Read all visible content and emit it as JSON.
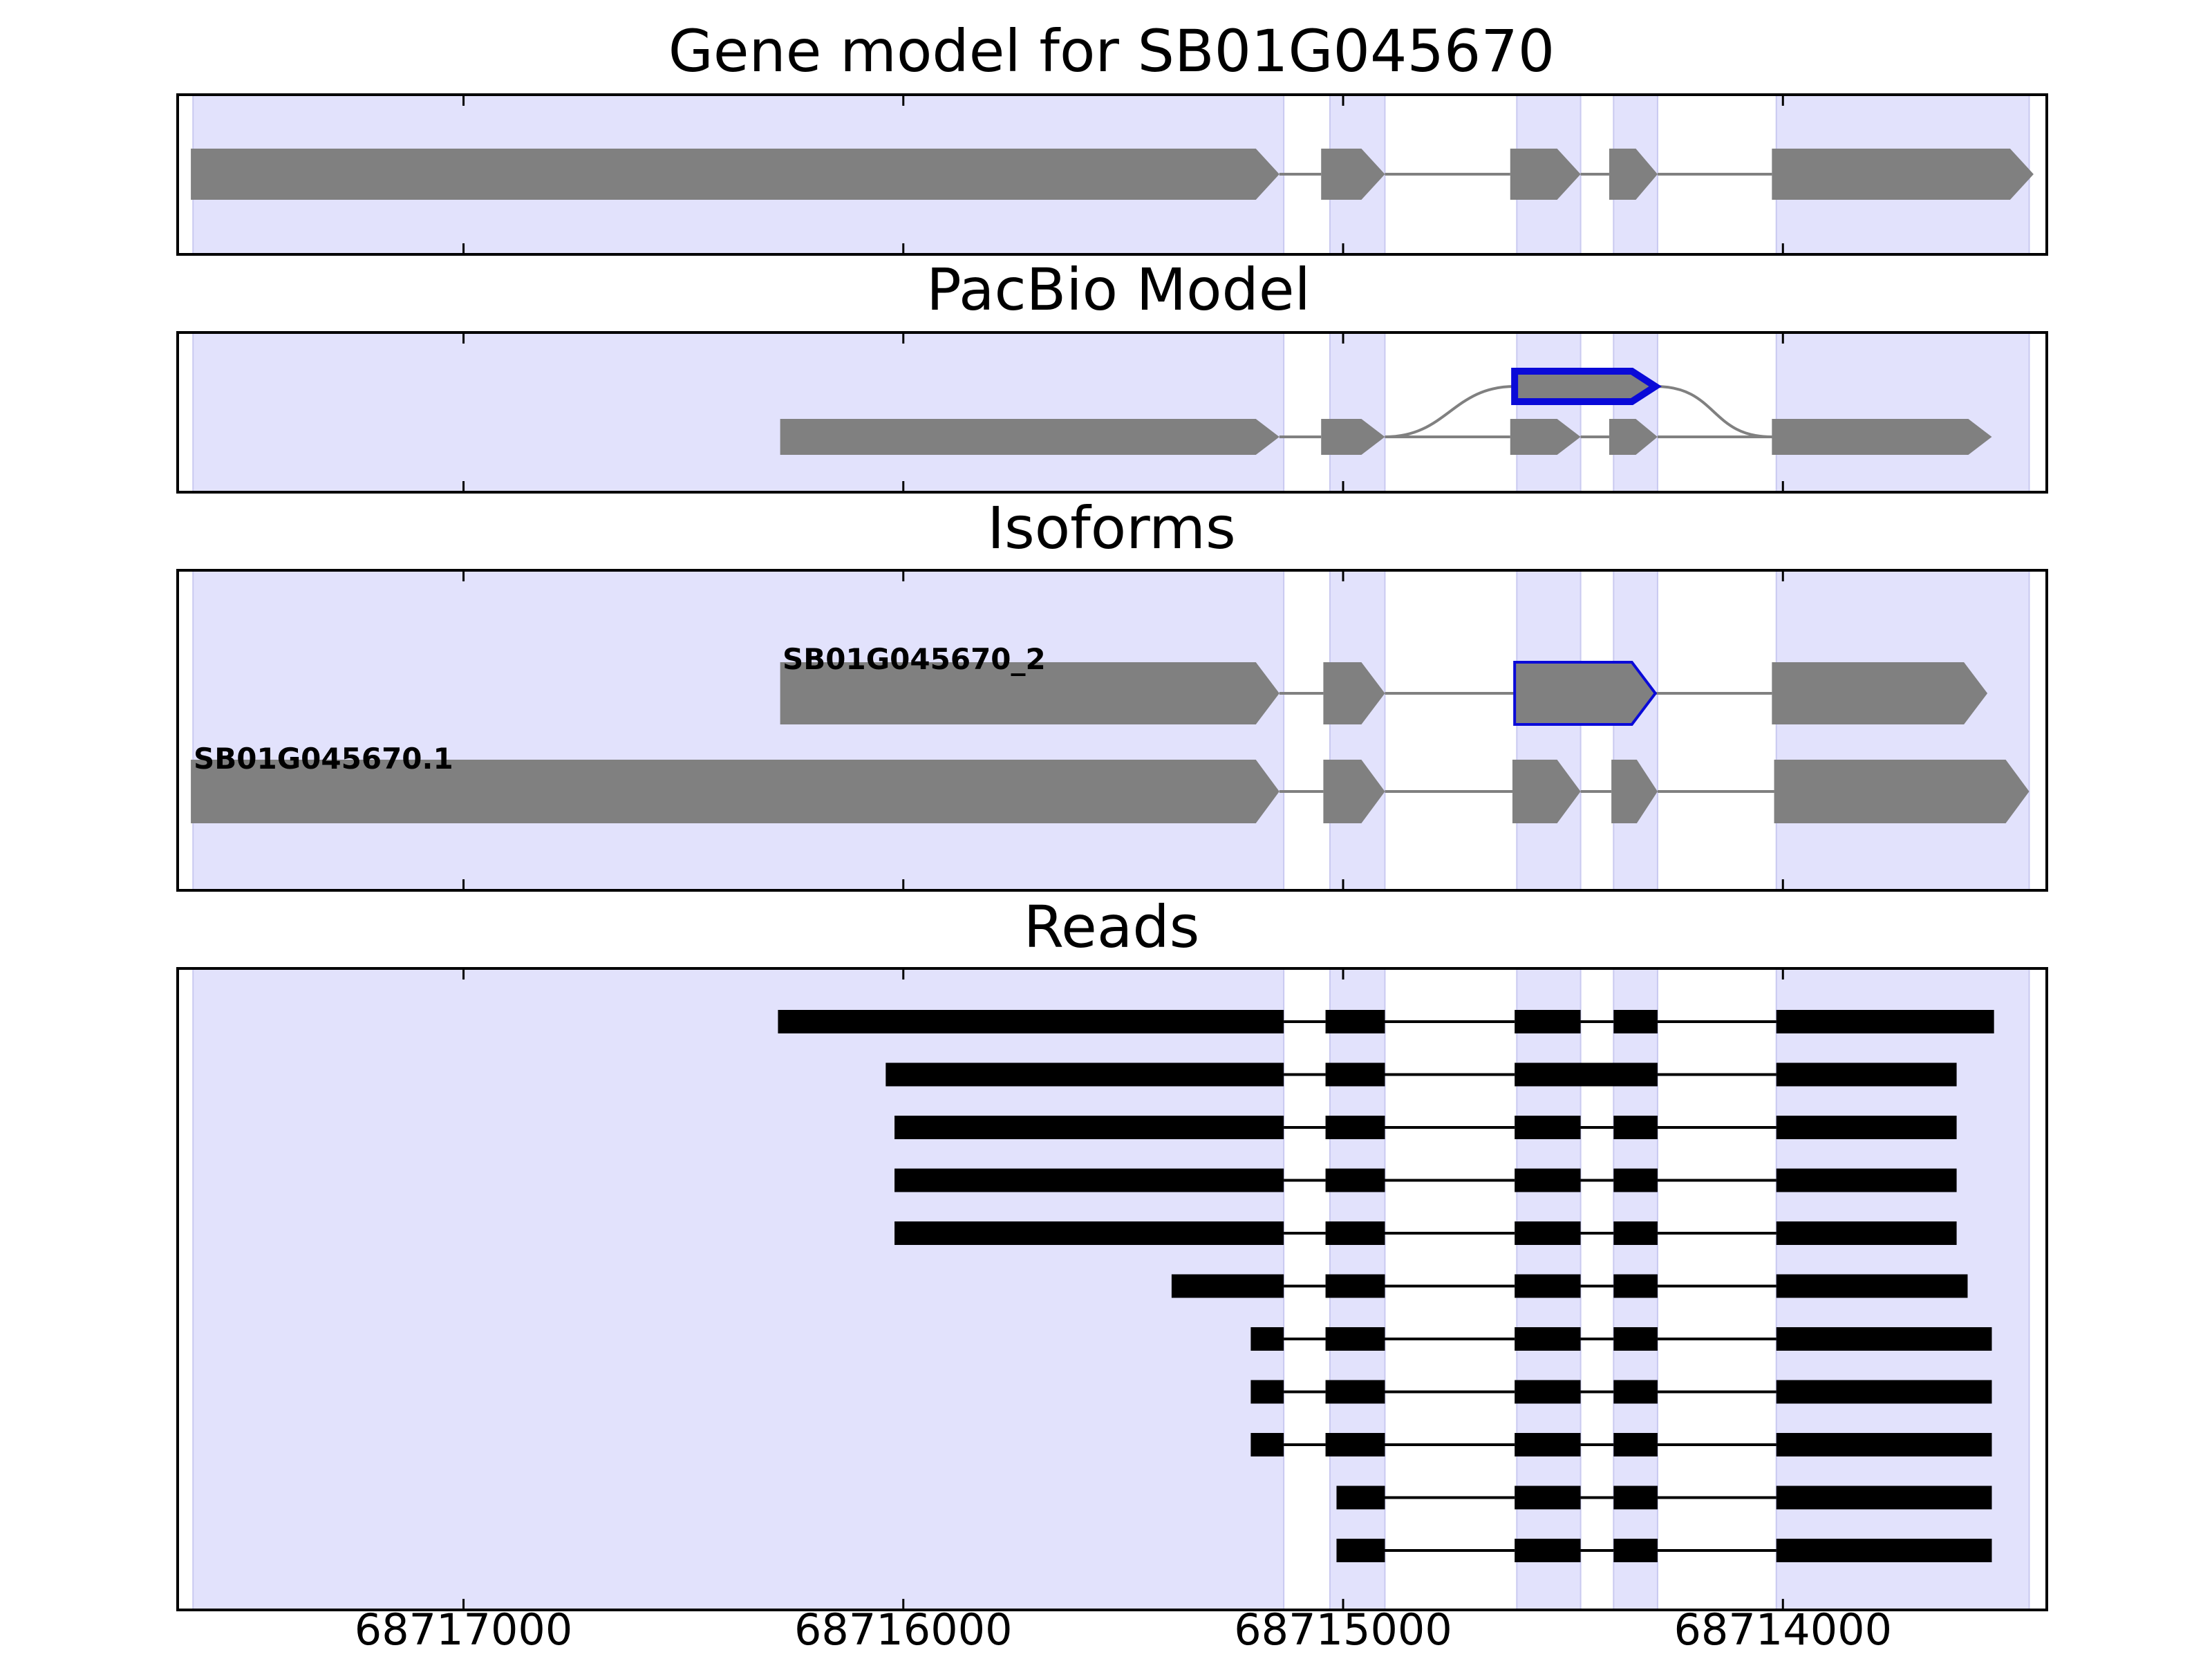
{
  "panels": [
    {
      "id": "gene",
      "title": "Gene model for SB01G045670"
    },
    {
      "id": "pacbio",
      "title": "PacBio Model"
    },
    {
      "id": "isoforms",
      "title": "Isoforms"
    },
    {
      "id": "reads",
      "title": "Reads"
    }
  ],
  "colors": {
    "shade": "#e2e2fc",
    "shade_edge": "#c9c9f0",
    "feature": "#808080",
    "highlight": "#0a0ad8",
    "read": "#000000",
    "intron": "#808080",
    "frame": "#000000"
  },
  "chart_data": {
    "type": "gene-structure",
    "x_axis": {
      "reversed": true,
      "range": [
        68717650,
        68713400
      ],
      "ticks": [
        68717000,
        68716000,
        68715000,
        68714000
      ],
      "tick_labels": [
        "68717000",
        "68716000",
        "68715000",
        "68714000"
      ]
    },
    "shaded_regions": [
      [
        68717615,
        68715135
      ],
      [
        68715030,
        68714905
      ],
      [
        68714605,
        68714460
      ],
      [
        68714385,
        68714285
      ],
      [
        68714015,
        68713440
      ]
    ],
    "gene_model": {
      "exons": [
        [
          68717620,
          68715145
        ],
        [
          68715050,
          68714905
        ],
        [
          68714620,
          68714460
        ],
        [
          68714395,
          68714285
        ],
        [
          68714025,
          68713430
        ]
      ]
    },
    "pacbio_model": {
      "exons": [
        [
          68716280,
          68715145
        ],
        [
          68715050,
          68714905
        ],
        [
          68714620,
          68714460
        ],
        [
          68714395,
          68714285
        ],
        [
          68714025,
          68713525
        ]
      ],
      "alternative_exon": [
        68714610,
        68714290
      ]
    },
    "isoforms": [
      {
        "name": "SB01G045670_2",
        "exons": [
          [
            68716280,
            68715145
          ],
          [
            68715045,
            68714905
          ],
          [
            68714610,
            68714290
          ],
          [
            68714025,
            68713535
          ]
        ],
        "highlighted_exon": 2
      },
      {
        "name": "SB01G045670.1",
        "exons": [
          [
            68717620,
            68715145
          ],
          [
            68715045,
            68714905
          ],
          [
            68714615,
            68714460
          ],
          [
            68714390,
            68714285
          ],
          [
            68714020,
            68713440
          ]
        ]
      }
    ],
    "reads": [
      [
        [
          68716285,
          68715135
        ],
        [
          68715040,
          68714905
        ],
        [
          68714610,
          68714460
        ],
        [
          68714385,
          68714285
        ],
        [
          68714015,
          68713520
        ]
      ],
      [
        [
          68716040,
          68715135
        ],
        [
          68715040,
          68714905
        ],
        [
          68714610,
          68714285
        ],
        [
          68714015,
          68713605
        ]
      ],
      [
        [
          68716020,
          68715135
        ],
        [
          68715040,
          68714905
        ],
        [
          68714610,
          68714460
        ],
        [
          68714385,
          68714285
        ],
        [
          68714015,
          68713605
        ]
      ],
      [
        [
          68716020,
          68715135
        ],
        [
          68715040,
          68714905
        ],
        [
          68714610,
          68714460
        ],
        [
          68714385,
          68714285
        ],
        [
          68714015,
          68713605
        ]
      ],
      [
        [
          68716020,
          68715135
        ],
        [
          68715040,
          68714905
        ],
        [
          68714610,
          68714460
        ],
        [
          68714385,
          68714285
        ],
        [
          68714015,
          68713605
        ]
      ],
      [
        [
          68715390,
          68715135
        ],
        [
          68715040,
          68714905
        ],
        [
          68714610,
          68714460
        ],
        [
          68714385,
          68714285
        ],
        [
          68714015,
          68713580
        ]
      ],
      [
        [
          68715210,
          68715135
        ],
        [
          68715040,
          68714905
        ],
        [
          68714610,
          68714460
        ],
        [
          68714385,
          68714285
        ],
        [
          68714015,
          68713525
        ]
      ],
      [
        [
          68715210,
          68715135
        ],
        [
          68715040,
          68714905
        ],
        [
          68714610,
          68714460
        ],
        [
          68714385,
          68714285
        ],
        [
          68714015,
          68713525
        ]
      ],
      [
        [
          68715210,
          68715135
        ],
        [
          68715040,
          68714905
        ],
        [
          68714610,
          68714460
        ],
        [
          68714385,
          68714285
        ],
        [
          68714015,
          68713525
        ]
      ],
      [
        [
          68715015,
          68714905
        ],
        [
          68714610,
          68714460
        ],
        [
          68714385,
          68714285
        ],
        [
          68714015,
          68713525
        ]
      ],
      [
        [
          68715015,
          68714905
        ],
        [
          68714610,
          68714460
        ],
        [
          68714385,
          68714285
        ],
        [
          68714015,
          68713525
        ]
      ]
    ]
  }
}
